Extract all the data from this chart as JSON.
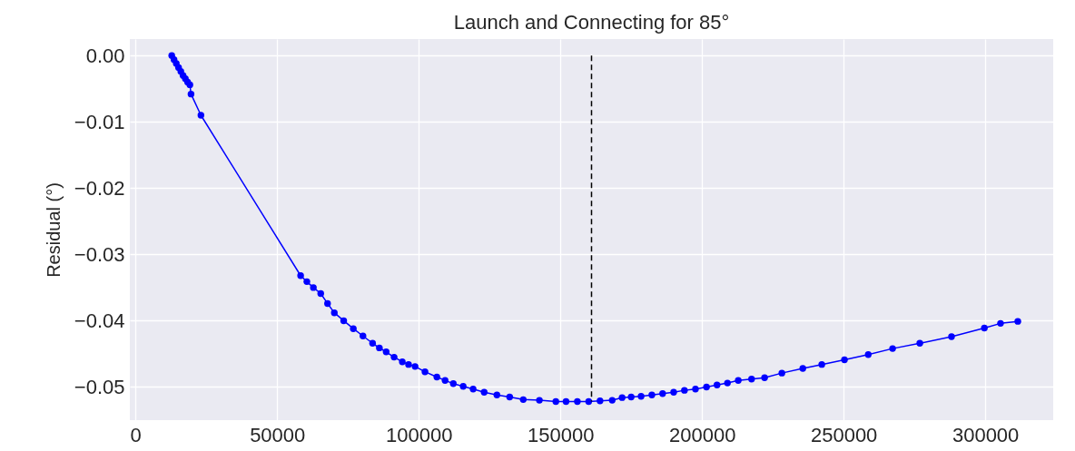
{
  "chart_data": {
    "type": "line",
    "title": "Launch and Connecting for 85°",
    "ylabel": "Residual (°)",
    "xlim": [
      -2000,
      324000
    ],
    "ylim": [
      -0.055,
      0.0025
    ],
    "xticks": [
      0,
      50000,
      100000,
      150000,
      200000,
      250000,
      300000
    ],
    "yticks": [
      {
        "value": 0,
        "label": "0.00"
      },
      {
        "value": -0.01,
        "label": "−0.01"
      },
      {
        "value": -0.02,
        "label": "−0.02"
      },
      {
        "value": -0.03,
        "label": "−0.03"
      },
      {
        "value": -0.04,
        "label": "−0.04"
      },
      {
        "value": -0.05,
        "label": "−0.05"
      }
    ],
    "grid": true,
    "marker": "circle",
    "line_style": "solid",
    "series": [
      {
        "color": "#0000ff",
        "x": [
          12800,
          13600,
          14400,
          15200,
          16000,
          16800,
          17600,
          18400,
          19200,
          19600,
          23100,
          58300,
          60500,
          62800,
          65400,
          67800,
          70200,
          73500,
          76900,
          80300,
          83700,
          86100,
          88500,
          91300,
          94200,
          96400,
          98700,
          102200,
          106400,
          109300,
          112200,
          115700,
          119200,
          123100,
          127600,
          132100,
          136900,
          142600,
          148400,
          152000,
          156000,
          160000,
          164000,
          168300,
          171800,
          175000,
          178500,
          182300,
          186100,
          190000,
          193800,
          197700,
          201600,
          205300,
          209000,
          212800,
          217500,
          222100,
          228200,
          235600,
          242300,
          250300,
          258700,
          267300,
          276900,
          288100,
          299700,
          305400,
          311500
        ],
        "values": [
          0,
          -0.0006,
          -0.0012,
          -0.0018,
          -0.0024,
          -0.003,
          -0.0035,
          -0.004,
          -0.0044,
          -0.0058,
          -0.009,
          -0.0332,
          -0.0341,
          -0.035,
          -0.0359,
          -0.0374,
          -0.0388,
          -0.04,
          -0.0412,
          -0.0423,
          -0.0434,
          -0.0441,
          -0.0447,
          -0.0455,
          -0.0462,
          -0.0466,
          -0.0469,
          -0.0477,
          -0.0485,
          -0.049,
          -0.0495,
          -0.0499,
          -0.0503,
          -0.0508,
          -0.0512,
          -0.0515,
          -0.0519,
          -0.052,
          -0.0522,
          -0.0522,
          -0.0522,
          -0.0522,
          -0.0521,
          -0.052,
          -0.0516,
          -0.0515,
          -0.0514,
          -0.0512,
          -0.051,
          -0.0508,
          -0.0505,
          -0.0503,
          -0.05,
          -0.0497,
          -0.0494,
          -0.049,
          -0.0488,
          -0.0486,
          -0.0479,
          -0.0472,
          -0.0466,
          -0.0459,
          -0.0451,
          -0.0442,
          -0.0434,
          -0.0424,
          -0.0411,
          -0.0404,
          -0.0401
        ]
      },
      {
        "color": "#000000",
        "line_style": "dashed",
        "marker": "none",
        "x": [
          161000,
          161000
        ],
        "values": [
          0,
          -0.0522
        ]
      }
    ]
  }
}
